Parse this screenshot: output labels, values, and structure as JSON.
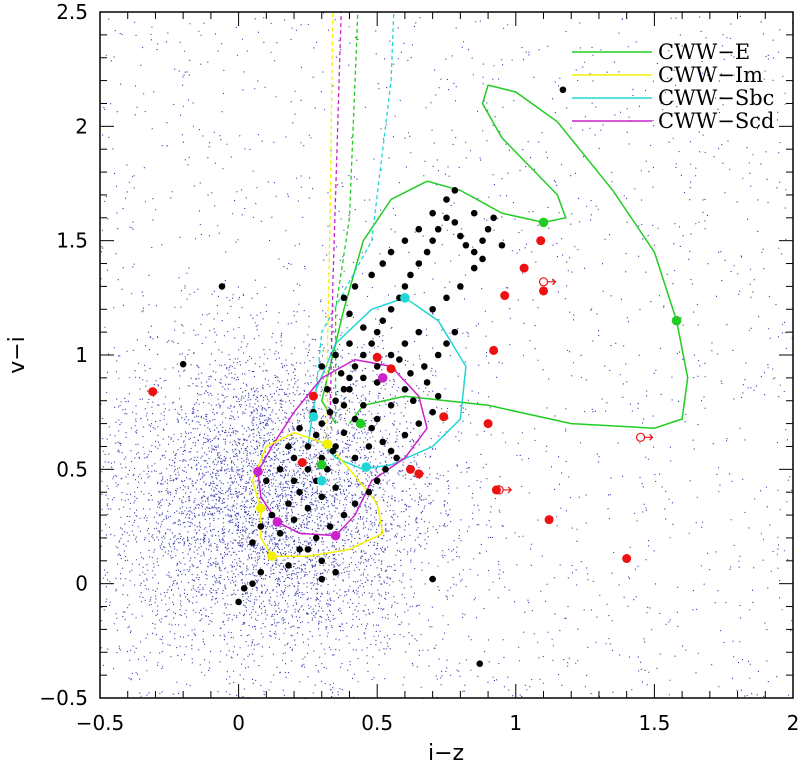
{
  "chart_data": {
    "type": "scatter",
    "xlabel": "i−z",
    "ylabel": "v−i",
    "xlim": [
      -0.5,
      2.0
    ],
    "ylim": [
      -0.5,
      2.5
    ],
    "xticks": [
      "−0.5",
      "0",
      "0.5",
      "1",
      "1.5",
      "2"
    ],
    "yticks": [
      "−0.5",
      "0",
      "0.5",
      "1",
      "1.5",
      "2",
      "2.5"
    ],
    "grid": false,
    "legend_position": "top-right",
    "legend": [
      {
        "label": "CWW−E",
        "color": "#22cc22"
      },
      {
        "label": "CWW−Im",
        "color": "#f2f200"
      },
      {
        "label": "CWW−Sbc",
        "color": "#22d6d6"
      },
      {
        "label": "CWW−Scd",
        "color": "#cc22cc"
      }
    ],
    "colors": {
      "background_points": "#1a1aa0",
      "sample_points": "#000000",
      "red_points": "#ee1111",
      "E": "#22cc22",
      "Im": "#f2f200",
      "Sbc": "#22d6d6",
      "Scd": "#cc22cc"
    },
    "background_cloud": {
      "description_value_center": [
        0.12,
        0.35
      ],
      "spread": [
        0.3,
        0.35
      ],
      "count": 9000
    },
    "black_points": [
      [
        0.05,
        0.18
      ],
      [
        0.08,
        0.25
      ],
      [
        0.12,
        0.3
      ],
      [
        0.15,
        0.22
      ],
      [
        0.18,
        0.35
      ],
      [
        0.2,
        0.28
      ],
      [
        0.22,
        0.4
      ],
      [
        0.25,
        0.33
      ],
      [
        0.28,
        0.45
      ],
      [
        0.3,
        0.38
      ],
      [
        0.32,
        0.5
      ],
      [
        0.35,
        0.42
      ],
      [
        0.1,
        0.45
      ],
      [
        0.15,
        0.5
      ],
      [
        0.2,
        0.55
      ],
      [
        0.25,
        0.6
      ],
      [
        0.28,
        0.65
      ],
      [
        0.3,
        0.7
      ],
      [
        0.33,
        0.75
      ],
      [
        0.35,
        0.8
      ],
      [
        0.38,
        0.85
      ],
      [
        0.4,
        0.9
      ],
      [
        0.42,
        0.95
      ],
      [
        0.45,
        1.0
      ],
      [
        0.48,
        1.05
      ],
      [
        0.5,
        1.1
      ],
      [
        0.52,
        1.15
      ],
      [
        0.55,
        1.2
      ],
      [
        0.58,
        1.25
      ],
      [
        0.6,
        1.3
      ],
      [
        0.62,
        1.35
      ],
      [
        0.65,
        1.4
      ],
      [
        0.68,
        1.45
      ],
      [
        0.7,
        1.5
      ],
      [
        0.72,
        1.55
      ],
      [
        0.75,
        1.6
      ],
      [
        0.78,
        1.58
      ],
      [
        0.8,
        1.52
      ],
      [
        0.82,
        1.48
      ],
      [
        0.85,
        1.45
      ],
      [
        0.88,
        1.5
      ],
      [
        0.9,
        1.55
      ],
      [
        0.92,
        1.6
      ],
      [
        0.95,
        1.48
      ],
      [
        0.85,
        1.38
      ],
      [
        0.8,
        1.3
      ],
      [
        0.75,
        1.25
      ],
      [
        0.7,
        1.2
      ],
      [
        0.65,
        1.1
      ],
      [
        0.6,
        1.05
      ],
      [
        0.55,
        1.0
      ],
      [
        0.5,
        0.95
      ],
      [
        0.45,
        0.9
      ],
      [
        0.4,
        0.85
      ],
      [
        0.38,
        0.78
      ],
      [
        0.42,
        0.72
      ],
      [
        0.48,
        0.68
      ],
      [
        0.52,
        0.62
      ],
      [
        0.55,
        0.58
      ],
      [
        0.6,
        0.65
      ],
      [
        0.65,
        0.7
      ],
      [
        0.7,
        0.75
      ],
      [
        0.72,
        0.82
      ],
      [
        0.68,
        0.88
      ],
      [
        0.62,
        0.92
      ],
      [
        0.58,
        0.98
      ],
      [
        0.45,
        1.12
      ],
      [
        0.4,
        1.18
      ],
      [
        0.38,
        1.25
      ],
      [
        0.42,
        1.3
      ],
      [
        0.48,
        1.35
      ],
      [
        0.52,
        1.4
      ],
      [
        0.55,
        1.45
      ],
      [
        0.6,
        1.5
      ],
      [
        0.65,
        1.55
      ],
      [
        0.7,
        1.62
      ],
      [
        0.75,
        1.68
      ],
      [
        0.78,
        1.72
      ],
      [
        0.85,
        1.62
      ],
      [
        0.88,
        1.42
      ],
      [
        0.35,
        0.6
      ],
      [
        0.3,
        0.55
      ],
      [
        0.25,
        0.5
      ],
      [
        0.2,
        0.45
      ],
      [
        0.18,
        0.6
      ],
      [
        0.22,
        0.68
      ],
      [
        0.27,
        0.75
      ],
      [
        0.32,
        0.85
      ],
      [
        0.37,
        0.92
      ],
      [
        0.3,
        0.95
      ],
      [
        0.35,
        1.0
      ],
      [
        0.4,
        1.05
      ],
      [
        0.28,
        0.2
      ],
      [
        0.33,
        0.25
      ],
      [
        0.38,
        0.3
      ],
      [
        0.42,
        0.35
      ],
      [
        0.47,
        0.4
      ],
      [
        0.5,
        0.45
      ],
      [
        0.53,
        0.5
      ],
      [
        0.57,
        0.55
      ],
      [
        0.25,
        0.15
      ],
      [
        0.3,
        0.1
      ],
      [
        0.35,
        0.05
      ],
      [
        0.05,
        0.0
      ],
      [
        0.0,
        -0.08
      ],
      [
        0.02,
        -0.02
      ],
      [
        0.08,
        0.05
      ],
      [
        0.12,
        0.12
      ],
      [
        0.18,
        0.08
      ],
      [
        0.22,
        0.15
      ],
      [
        0.42,
        0.55
      ],
      [
        0.47,
        0.6
      ],
      [
        0.5,
        0.72
      ],
      [
        0.55,
        0.78
      ],
      [
        0.6,
        0.85
      ],
      [
        0.63,
        0.8
      ],
      [
        0.67,
        0.95
      ],
      [
        0.72,
        1.0
      ],
      [
        0.75,
        1.05
      ],
      [
        0.78,
        1.1
      ],
      [
        0.3,
        0.02
      ],
      [
        0.7,
        0.02
      ],
      [
        0.87,
        -0.35
      ],
      [
        1.17,
        2.16
      ],
      [
        -0.06,
        1.3
      ],
      [
        -0.2,
        0.96
      ],
      [
        0.5,
        0.88
      ],
      [
        0.45,
        0.78
      ],
      [
        0.38,
        0.66
      ],
      [
        0.34,
        0.58
      ]
    ],
    "red_points": [
      [
        -0.31,
        0.84
      ],
      [
        0.23,
        0.53
      ],
      [
        0.27,
        0.82
      ],
      [
        0.5,
        0.99
      ],
      [
        0.55,
        0.94
      ],
      [
        0.74,
        0.73
      ],
      [
        0.62,
        0.5
      ],
      [
        0.65,
        0.48
      ],
      [
        0.9,
        0.7
      ],
      [
        0.92,
        1.02
      ],
      [
        0.96,
        1.26
      ],
      [
        1.03,
        1.38
      ],
      [
        1.09,
        1.5
      ],
      [
        1.1,
        1.28
      ],
      [
        1.12,
        0.28
      ],
      [
        1.4,
        0.11
      ],
      [
        0.93,
        0.41
      ]
    ],
    "colored_markers": [
      {
        "x": 1.1,
        "y": 1.58,
        "color": "E"
      },
      {
        "x": 1.58,
        "y": 1.15,
        "color": "E"
      },
      {
        "x": 0.44,
        "y": 0.7,
        "color": "E"
      },
      {
        "x": 0.3,
        "y": 0.52,
        "color": "E"
      },
      {
        "x": 0.6,
        "y": 1.25,
        "color": "Sbc"
      },
      {
        "x": 0.27,
        "y": 0.73,
        "color": "Sbc"
      },
      {
        "x": 0.3,
        "y": 0.45,
        "color": "Sbc"
      },
      {
        "x": 0.46,
        "y": 0.51,
        "color": "Sbc"
      },
      {
        "x": 0.07,
        "y": 0.49,
        "color": "Scd"
      },
      {
        "x": 0.14,
        "y": 0.27,
        "color": "Scd"
      },
      {
        "x": 0.35,
        "y": 0.21,
        "color": "Scd"
      },
      {
        "x": 0.52,
        "y": 0.9,
        "color": "Scd"
      },
      {
        "x": 0.08,
        "y": 0.33,
        "color": "Im"
      },
      {
        "x": 0.12,
        "y": 0.12,
        "color": "Im"
      },
      {
        "x": 0.32,
        "y": 0.61,
        "color": "Im"
      }
    ],
    "tracks": {
      "E": [
        [
          0.35,
          0.7
        ],
        [
          0.3,
          0.8
        ],
        [
          0.38,
          1.2
        ],
        [
          0.45,
          1.5
        ],
        [
          0.55,
          1.68
        ],
        [
          0.68,
          1.76
        ],
        [
          0.8,
          1.72
        ],
        [
          0.95,
          1.62
        ],
        [
          1.1,
          1.58
        ],
        [
          1.18,
          1.6
        ],
        [
          1.15,
          1.7
        ],
        [
          0.95,
          1.95
        ],
        [
          0.88,
          2.1
        ],
        [
          0.9,
          2.18
        ],
        [
          1.0,
          2.15
        ],
        [
          1.15,
          2.02
        ],
        [
          1.35,
          1.72
        ],
        [
          1.5,
          1.45
        ],
        [
          1.58,
          1.15
        ],
        [
          1.62,
          0.9
        ],
        [
          1.6,
          0.72
        ],
        [
          1.5,
          0.68
        ],
        [
          1.2,
          0.7
        ],
        [
          0.9,
          0.78
        ],
        [
          0.6,
          0.82
        ],
        [
          0.45,
          0.78
        ],
        [
          0.4,
          0.7
        ]
      ],
      "Sbc": [
        [
          0.25,
          0.6
        ],
        [
          0.28,
          0.85
        ],
        [
          0.35,
          1.05
        ],
        [
          0.48,
          1.2
        ],
        [
          0.6,
          1.25
        ],
        [
          0.72,
          1.15
        ],
        [
          0.82,
          0.95
        ],
        [
          0.8,
          0.72
        ],
        [
          0.7,
          0.6
        ],
        [
          0.55,
          0.52
        ],
        [
          0.45,
          0.5
        ],
        [
          0.35,
          0.55
        ],
        [
          0.3,
          0.62
        ]
      ],
      "Scd": [
        [
          0.07,
          0.49
        ],
        [
          0.12,
          0.6
        ],
        [
          0.2,
          0.75
        ],
        [
          0.3,
          0.9
        ],
        [
          0.42,
          0.98
        ],
        [
          0.55,
          0.95
        ],
        [
          0.65,
          0.82
        ],
        [
          0.68,
          0.68
        ],
        [
          0.6,
          0.55
        ],
        [
          0.48,
          0.45
        ],
        [
          0.42,
          0.3
        ],
        [
          0.35,
          0.21
        ],
        [
          0.22,
          0.22
        ],
        [
          0.14,
          0.27
        ],
        [
          0.08,
          0.38
        ],
        [
          0.07,
          0.49
        ]
      ],
      "Im": [
        [
          0.08,
          0.33
        ],
        [
          0.05,
          0.45
        ],
        [
          0.1,
          0.6
        ],
        [
          0.2,
          0.66
        ],
        [
          0.32,
          0.61
        ],
        [
          0.4,
          0.5
        ],
        [
          0.5,
          0.35
        ],
        [
          0.52,
          0.22
        ],
        [
          0.4,
          0.15
        ],
        [
          0.25,
          0.12
        ],
        [
          0.12,
          0.12
        ],
        [
          0.08,
          0.2
        ],
        [
          0.08,
          0.33
        ]
      ]
    },
    "dashed_tracks": {
      "E": [
        [
          0.35,
          0.7
        ],
        [
          0.35,
          1.2
        ],
        [
          0.4,
          1.6
        ],
        [
          0.43,
          2.5
        ]
      ],
      "Im": [
        [
          0.32,
          0.61
        ],
        [
          0.32,
          1.0
        ],
        [
          0.33,
          1.6
        ],
        [
          0.34,
          2.5
        ]
      ],
      "Sbc": [
        [
          0.27,
          0.73
        ],
        [
          0.3,
          1.1
        ],
        [
          0.48,
          1.5
        ],
        [
          0.55,
          2.2
        ],
        [
          0.56,
          2.5
        ]
      ],
      "Scd": [
        [
          0.33,
          0.72
        ],
        [
          0.34,
          1.3
        ],
        [
          0.37,
          2.5
        ]
      ]
    },
    "arrow_markers": [
      {
        "x": 1.45,
        "y": 0.64
      },
      {
        "x": 0.94,
        "y": 0.41
      },
      {
        "x": 1.1,
        "y": 1.32
      }
    ]
  }
}
